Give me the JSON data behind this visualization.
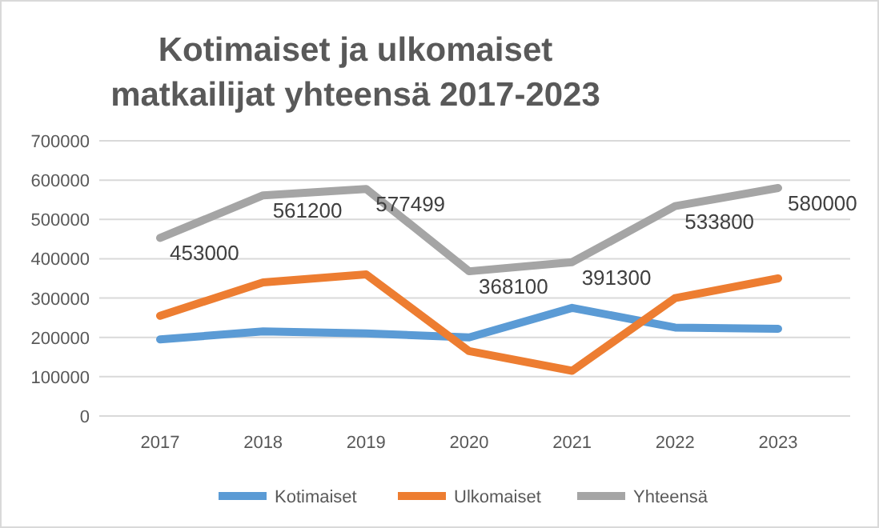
{
  "chart_data": {
    "type": "line",
    "title": "Kotimaiset ja ulkomaiset matkailijat yhteensä 2017-2023",
    "categories": [
      "2017",
      "2018",
      "2019",
      "2020",
      "2021",
      "2022",
      "2023"
    ],
    "series": [
      {
        "name": "Kotimaiset",
        "color": "#5b9bd5",
        "values": [
          195000,
          215000,
          210000,
          200000,
          275000,
          225000,
          222000
        ]
      },
      {
        "name": "Ulkomaiset",
        "color": "#ed7d31",
        "values": [
          255000,
          340000,
          360000,
          165000,
          115000,
          300000,
          350000
        ]
      },
      {
        "name": "Yhteensä",
        "color": "#a5a5a5",
        "values": [
          453000,
          561200,
          577499,
          368100,
          391300,
          533800,
          580000
        ],
        "value_labels": [
          "453000",
          "561200",
          "577499",
          "368100",
          "391300",
          "533800",
          "580000"
        ]
      }
    ],
    "ylim": [
      0,
      700000
    ],
    "yticks": [
      0,
      100000,
      200000,
      300000,
      400000,
      500000,
      600000,
      700000
    ],
    "grid": "y",
    "legend": "bottom",
    "marker": "none",
    "line_style": "solid"
  }
}
